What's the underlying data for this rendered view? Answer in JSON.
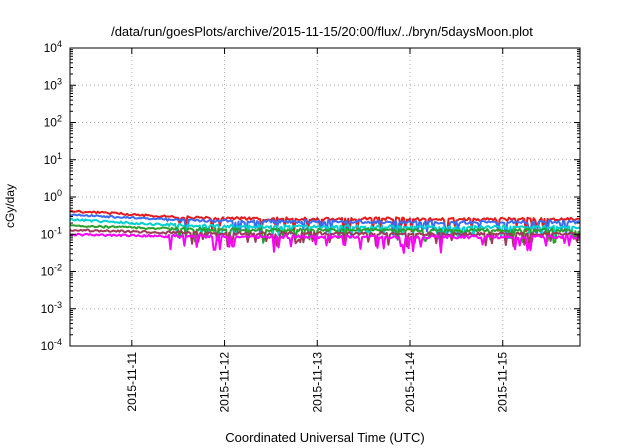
{
  "chart_data": {
    "type": "line",
    "title": "/data/run/goesPlots/archive/2015-11-15/20:00/flux/../bryn/5daysMoon.plot",
    "xlabel": "Coordinated Universal Time (UTC)",
    "ylabel": "cGy/day",
    "y_scale": "log",
    "ylim": [
      0.0001,
      10000
    ],
    "y_ticks": [
      {
        "value": 0.0001,
        "base": "10",
        "exp": "-4"
      },
      {
        "value": 0.001,
        "base": "10",
        "exp": "-3"
      },
      {
        "value": 0.01,
        "base": "10",
        "exp": "-2"
      },
      {
        "value": 0.1,
        "base": "10",
        "exp": "-1"
      },
      {
        "value": 1,
        "base": "10",
        "exp": "0"
      },
      {
        "value": 10,
        "base": "10",
        "exp": "1"
      },
      {
        "value": 100,
        "base": "10",
        "exp": "2"
      },
      {
        "value": 1000,
        "base": "10",
        "exp": "3"
      },
      {
        "value": 10000,
        "base": "10",
        "exp": "4"
      }
    ],
    "xlim": [
      "2015-11-10 08:00",
      "2015-11-15 20:00"
    ],
    "x_ticks": [
      "2015-11-11",
      "2015-11-12",
      "2015-11-13",
      "2015-11-14",
      "2015-11-15"
    ],
    "grid": true,
    "series": [
      {
        "color": "#e41a1c",
        "points": [
          [
            "2015-11-10 08:00",
            0.42
          ],
          [
            "2015-11-10 20:00",
            0.36
          ],
          [
            "2015-11-11 08:00",
            0.3
          ],
          [
            "2015-11-11 20:00",
            0.27
          ],
          [
            "2015-11-12 08:00",
            0.26
          ],
          [
            "2015-11-12 20:00",
            0.26
          ],
          [
            "2015-11-13 08:00",
            0.26
          ],
          [
            "2015-11-13 20:00",
            0.26
          ],
          [
            "2015-11-14 08:00",
            0.25
          ],
          [
            "2015-11-14 20:00",
            0.25
          ],
          [
            "2015-11-15 08:00",
            0.26
          ],
          [
            "2015-11-15 20:00",
            0.25
          ]
        ]
      },
      {
        "color": "#3a6cf4",
        "points": [
          [
            "2015-11-10 08:00",
            0.33
          ],
          [
            "2015-11-10 20:00",
            0.29
          ],
          [
            "2015-11-11 08:00",
            0.25
          ],
          [
            "2015-11-11 20:00",
            0.23
          ],
          [
            "2015-11-12 08:00",
            0.22
          ],
          [
            "2015-11-12 20:00",
            0.22
          ],
          [
            "2015-11-13 08:00",
            0.22
          ],
          [
            "2015-11-13 20:00",
            0.21
          ],
          [
            "2015-11-14 08:00",
            0.21
          ],
          [
            "2015-11-14 20:00",
            0.21
          ],
          [
            "2015-11-15 08:00",
            0.22
          ],
          [
            "2015-11-15 20:00",
            0.21
          ]
        ]
      },
      {
        "color": "#00d0d0",
        "points": [
          [
            "2015-11-10 08:00",
            0.25
          ],
          [
            "2015-11-10 20:00",
            0.21
          ],
          [
            "2015-11-11 08:00",
            0.18
          ],
          [
            "2015-11-11 20:00",
            0.17
          ],
          [
            "2015-11-12 08:00",
            0.16
          ],
          [
            "2015-11-12 20:00",
            0.16
          ],
          [
            "2015-11-13 08:00",
            0.16
          ],
          [
            "2015-11-13 20:00",
            0.16
          ],
          [
            "2015-11-14 08:00",
            0.155
          ],
          [
            "2015-11-14 20:00",
            0.155
          ],
          [
            "2015-11-15 08:00",
            0.16
          ],
          [
            "2015-11-15 20:00",
            0.155
          ]
        ]
      },
      {
        "color": "#2ca02c",
        "points": [
          [
            "2015-11-10 08:00",
            0.17
          ],
          [
            "2015-11-10 20:00",
            0.155
          ],
          [
            "2015-11-11 08:00",
            0.14
          ],
          [
            "2015-11-11 20:00",
            0.135
          ],
          [
            "2015-11-12 08:00",
            0.13
          ],
          [
            "2015-11-12 20:00",
            0.13
          ],
          [
            "2015-11-13 08:00",
            0.13
          ],
          [
            "2015-11-13 20:00",
            0.128
          ],
          [
            "2015-11-14 08:00",
            0.127
          ],
          [
            "2015-11-14 20:00",
            0.127
          ],
          [
            "2015-11-15 08:00",
            0.13
          ],
          [
            "2015-11-15 20:00",
            0.127
          ]
        ]
      },
      {
        "color": "#9e3a5a",
        "points": [
          [
            "2015-11-10 08:00",
            0.13
          ],
          [
            "2015-11-10 20:00",
            0.12
          ],
          [
            "2015-11-11 08:00",
            0.112
          ],
          [
            "2015-11-11 20:00",
            0.108
          ],
          [
            "2015-11-12 08:00",
            0.105
          ],
          [
            "2015-11-12 20:00",
            0.105
          ],
          [
            "2015-11-13 08:00",
            0.104
          ],
          [
            "2015-11-13 20:00",
            0.103
          ],
          [
            "2015-11-14 08:00",
            0.102
          ],
          [
            "2015-11-14 20:00",
            0.102
          ],
          [
            "2015-11-15 08:00",
            0.104
          ],
          [
            "2015-11-15 20:00",
            0.102
          ]
        ]
      },
      {
        "color": "#ff00ff",
        "points": [
          [
            "2015-11-10 08:00",
            0.098
          ],
          [
            "2015-11-10 20:00",
            0.094
          ],
          [
            "2015-11-11 08:00",
            0.09
          ],
          [
            "2015-11-11 20:00",
            0.088
          ],
          [
            "2015-11-12 08:00",
            0.086
          ],
          [
            "2015-11-12 20:00",
            0.086
          ],
          [
            "2015-11-13 08:00",
            0.085
          ],
          [
            "2015-11-13 20:00",
            0.083
          ],
          [
            "2015-11-14 08:00",
            0.084
          ],
          [
            "2015-11-14 20:00",
            0.084
          ],
          [
            "2015-11-15 08:00",
            0.085
          ],
          [
            "2015-11-15 20:00",
            0.084
          ]
        ]
      }
    ]
  }
}
